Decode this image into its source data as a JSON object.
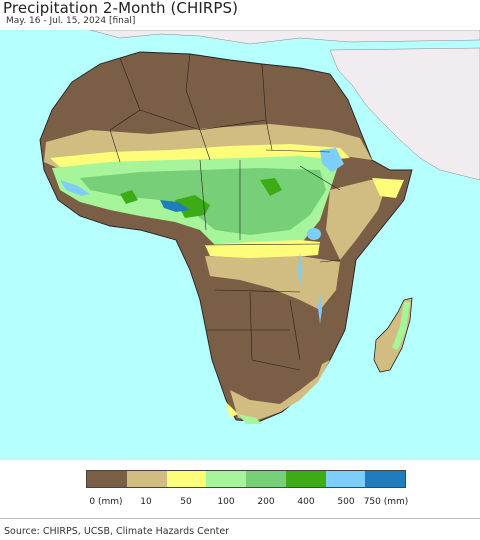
{
  "title": "Precipitation 2-Month (CHIRPS)",
  "subtitle": "May. 16 - Jul. 15, 2024 [final]",
  "legend": {
    "colors": [
      "#7a5e45",
      "#d1bd82",
      "#fdfd7a",
      "#a6f59a",
      "#77cf77",
      "#3cab16",
      "#7dcefa",
      "#1f7dbd"
    ],
    "ticks": [
      "0 (mm)",
      "10",
      "50",
      "100",
      "200",
      "400",
      "500",
      "750 (mm)"
    ]
  },
  "source": "Source: CHIRPS, UCSB, Climate Hazards Center",
  "colors": {
    "ocean": "#b5ffff",
    "non_africa_land": "#f0ecf0",
    "dry": "#7a5e45",
    "low": "#d1bd82"
  }
}
